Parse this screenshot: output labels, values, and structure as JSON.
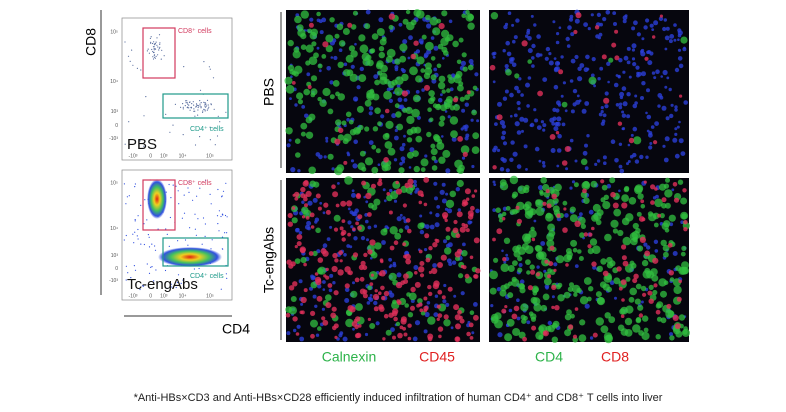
{
  "flow": {
    "y_axis_label": "CD8",
    "x_axis_label": "CD4",
    "y_ticks": [
      "10⁵",
      "10⁴",
      "10³",
      "0",
      "-10³"
    ],
    "x_ticks": [
      "-10³",
      "0",
      "10³",
      "10⁴",
      "10⁵"
    ],
    "panels": [
      {
        "label": "PBS",
        "cd8_gate": "CD8⁺ cells",
        "cd4_gate": "CD4⁺ cells"
      },
      {
        "label": "Tc-engAbs",
        "cd8_gate": "CD8⁺ cells",
        "cd4_gate": "CD4⁺ cells"
      }
    ]
  },
  "microscopy": {
    "rows": [
      "PBS",
      "Tc-engAbs"
    ],
    "stains": [
      [
        "Calnexin",
        "CD45"
      ],
      [
        "CD4",
        "CD8"
      ]
    ]
  },
  "caption": "*Anti-HBs×CD3 and Anti-HBs×CD28 efficiently induced infiltration of human CD4⁺ and CD8⁺ T cells into liver"
}
